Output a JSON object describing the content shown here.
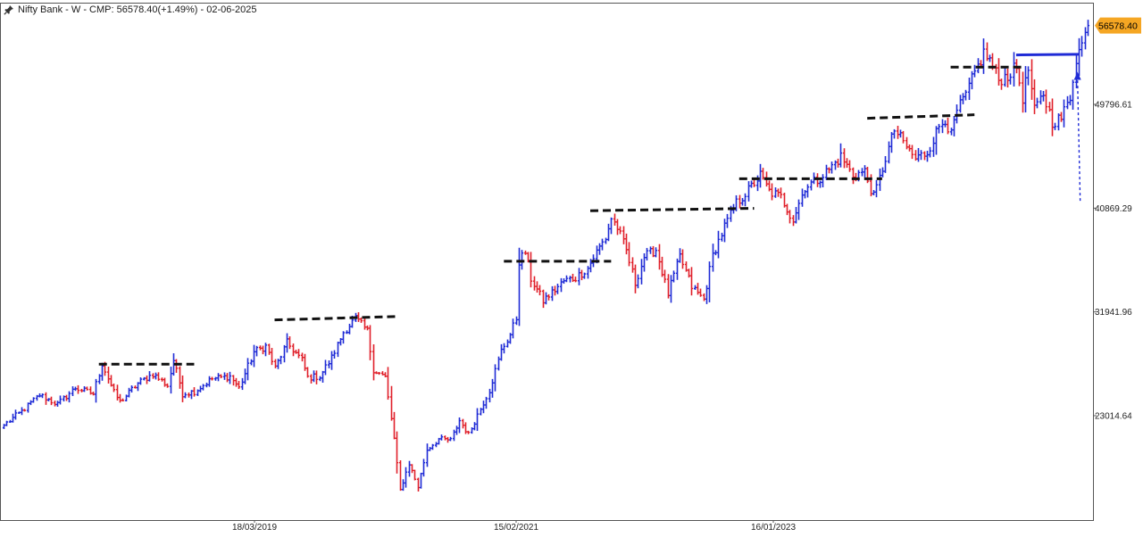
{
  "chart_data": {
    "type": "candlestick",
    "title": "Nifty Bank - W - CMP: 56578.40(+1.49%) - 02-06-2025",
    "instrument": "Nifty Bank",
    "timeframe": "W",
    "cmp": "56578.40",
    "change_pct": "(+1.49%)",
    "date": "02-06-2025",
    "last_price_label": "56578.40",
    "y_ticks": [
      "49796.61",
      "40869.29",
      "31941.96",
      "23014.64"
    ],
    "y_tick_values": [
      49796.61,
      40869.29,
      31941.96,
      23014.64
    ],
    "x_ticks": [
      "18/03/2019",
      "15/02/2021",
      "16/01/2023"
    ],
    "ylim": [
      13000,
      58700
    ],
    "up_color": "#1f2bd6",
    "down_color": "#e0202a",
    "path": [
      [
        0,
        22200
      ],
      [
        6,
        23400
      ],
      [
        12,
        24800
      ],
      [
        18,
        24000
      ],
      [
        24,
        25400
      ],
      [
        30,
        24900
      ],
      [
        33,
        27500
      ],
      [
        37,
        25000
      ],
      [
        39,
        24200
      ],
      [
        45,
        25800
      ],
      [
        50,
        26600
      ],
      [
        55,
        25600
      ],
      [
        57,
        27800
      ],
      [
        60,
        24900
      ],
      [
        64,
        25100
      ],
      [
        70,
        26200
      ],
      [
        76,
        26400
      ],
      [
        79,
        25400
      ],
      [
        84,
        28500
      ],
      [
        88,
        29000
      ],
      [
        91,
        27100
      ],
      [
        95,
        29300
      ],
      [
        100,
        27800
      ],
      [
        102,
        26300
      ],
      [
        106,
        26400
      ],
      [
        110,
        28000
      ],
      [
        114,
        30200
      ],
      [
        118,
        31400
      ],
      [
        122,
        30300
      ],
      [
        124,
        27000
      ],
      [
        128,
        26300
      ],
      [
        131,
        21000
      ],
      [
        133,
        16600
      ],
      [
        136,
        18900
      ],
      [
        139,
        16900
      ],
      [
        142,
        20100
      ],
      [
        146,
        21000
      ],
      [
        150,
        20900
      ],
      [
        153,
        22600
      ],
      [
        156,
        21400
      ],
      [
        159,
        23100
      ],
      [
        163,
        25200
      ],
      [
        167,
        28600
      ],
      [
        170,
        30000
      ],
      [
        172,
        31400
      ],
      [
        173,
        36300
      ],
      [
        175,
        37100
      ],
      [
        177,
        34800
      ],
      [
        181,
        32900
      ],
      [
        184,
        33600
      ],
      [
        188,
        34600
      ],
      [
        192,
        34900
      ],
      [
        196,
        35700
      ],
      [
        199,
        37100
      ],
      [
        202,
        38300
      ],
      [
        204,
        40000
      ],
      [
        206,
        39200
      ],
      [
        209,
        37200
      ],
      [
        212,
        34400
      ],
      [
        215,
        36700
      ],
      [
        219,
        37300
      ],
      [
        223,
        33500
      ],
      [
        227,
        36700
      ],
      [
        231,
        34100
      ],
      [
        235,
        33000
      ],
      [
        238,
        36800
      ],
      [
        242,
        39300
      ],
      [
        246,
        41300
      ],
      [
        250,
        42400
      ],
      [
        254,
        43700
      ],
      [
        257,
        42300
      ],
      [
        261,
        41800
      ],
      [
        265,
        39900
      ],
      [
        269,
        42700
      ],
      [
        273,
        43300
      ],
      [
        277,
        44200
      ],
      [
        281,
        45300
      ],
      [
        285,
        43700
      ],
      [
        289,
        44000
      ],
      [
        292,
        41800
      ],
      [
        294,
        43400
      ],
      [
        296,
        45200
      ],
      [
        299,
        47600
      ],
      [
        302,
        46500
      ],
      [
        306,
        45100
      ],
      [
        310,
        45700
      ],
      [
        314,
        47900
      ],
      [
        316,
        48600
      ],
      [
        318,
        47100
      ],
      [
        320,
        49200
      ],
      [
        323,
        50600
      ],
      [
        326,
        52500
      ],
      [
        329,
        54200
      ],
      [
        331,
        53600
      ],
      [
        334,
        51900
      ],
      [
        337,
        52300
      ],
      [
        340,
        53000
      ],
      [
        342,
        50400
      ],
      [
        344,
        52800
      ],
      [
        346,
        49200
      ],
      [
        349,
        50700
      ],
      [
        352,
        48300
      ],
      [
        355,
        48600
      ],
      [
        358,
        50400
      ],
      [
        360,
        53800
      ],
      [
        362,
        55000
      ],
      [
        364,
        56578
      ]
    ],
    "annotations": {
      "resistance_lines": [
        {
          "x0": 32,
          "x1": 64,
          "y": 27450
        },
        {
          "x0": 91,
          "x1": 132,
          "y": 31250,
          "y1": 31550
        },
        {
          "x0": 168,
          "x1": 204,
          "y": 36300
        },
        {
          "x0": 197,
          "x1": 252,
          "y": 40650,
          "y1": 40850
        },
        {
          "x0": 247,
          "x1": 295,
          "y": 43400
        },
        {
          "x0": 290,
          "x1": 326,
          "y": 48600,
          "y1": 48900
        },
        {
          "x0": 318,
          "x1": 342,
          "y": 53000
        }
      ],
      "breakout_line": {
        "x0": 340,
        "x1": 361,
        "y": 54050,
        "y1": 54100
      },
      "arrow": {
        "x": 360,
        "y_from": 41500,
        "y_to": 52600
      }
    }
  }
}
